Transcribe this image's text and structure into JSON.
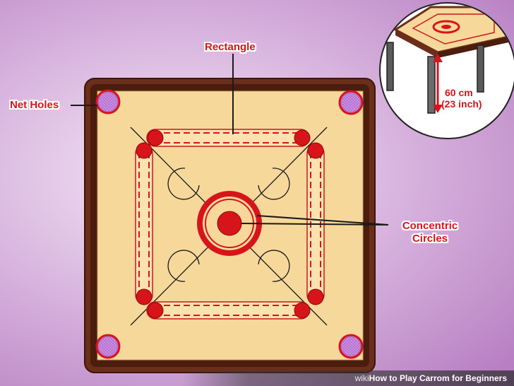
{
  "labels": {
    "rectangle": "Rectangle",
    "net_holes": "Net Holes",
    "concentric_line1": "Concentric",
    "concentric_line2": "Circles"
  },
  "inset": {
    "height_cm": "60 cm",
    "height_in": "(23 inch)"
  },
  "footer": {
    "brand": "wiki",
    "how": "How",
    "title": " to Play Carrom for Beginners"
  },
  "colors": {
    "accent_red": "#d8141b",
    "board_wood": "#f7d89b",
    "frame_brown": "#6b2e1a",
    "pocket_purple": "#b36ed0"
  }
}
